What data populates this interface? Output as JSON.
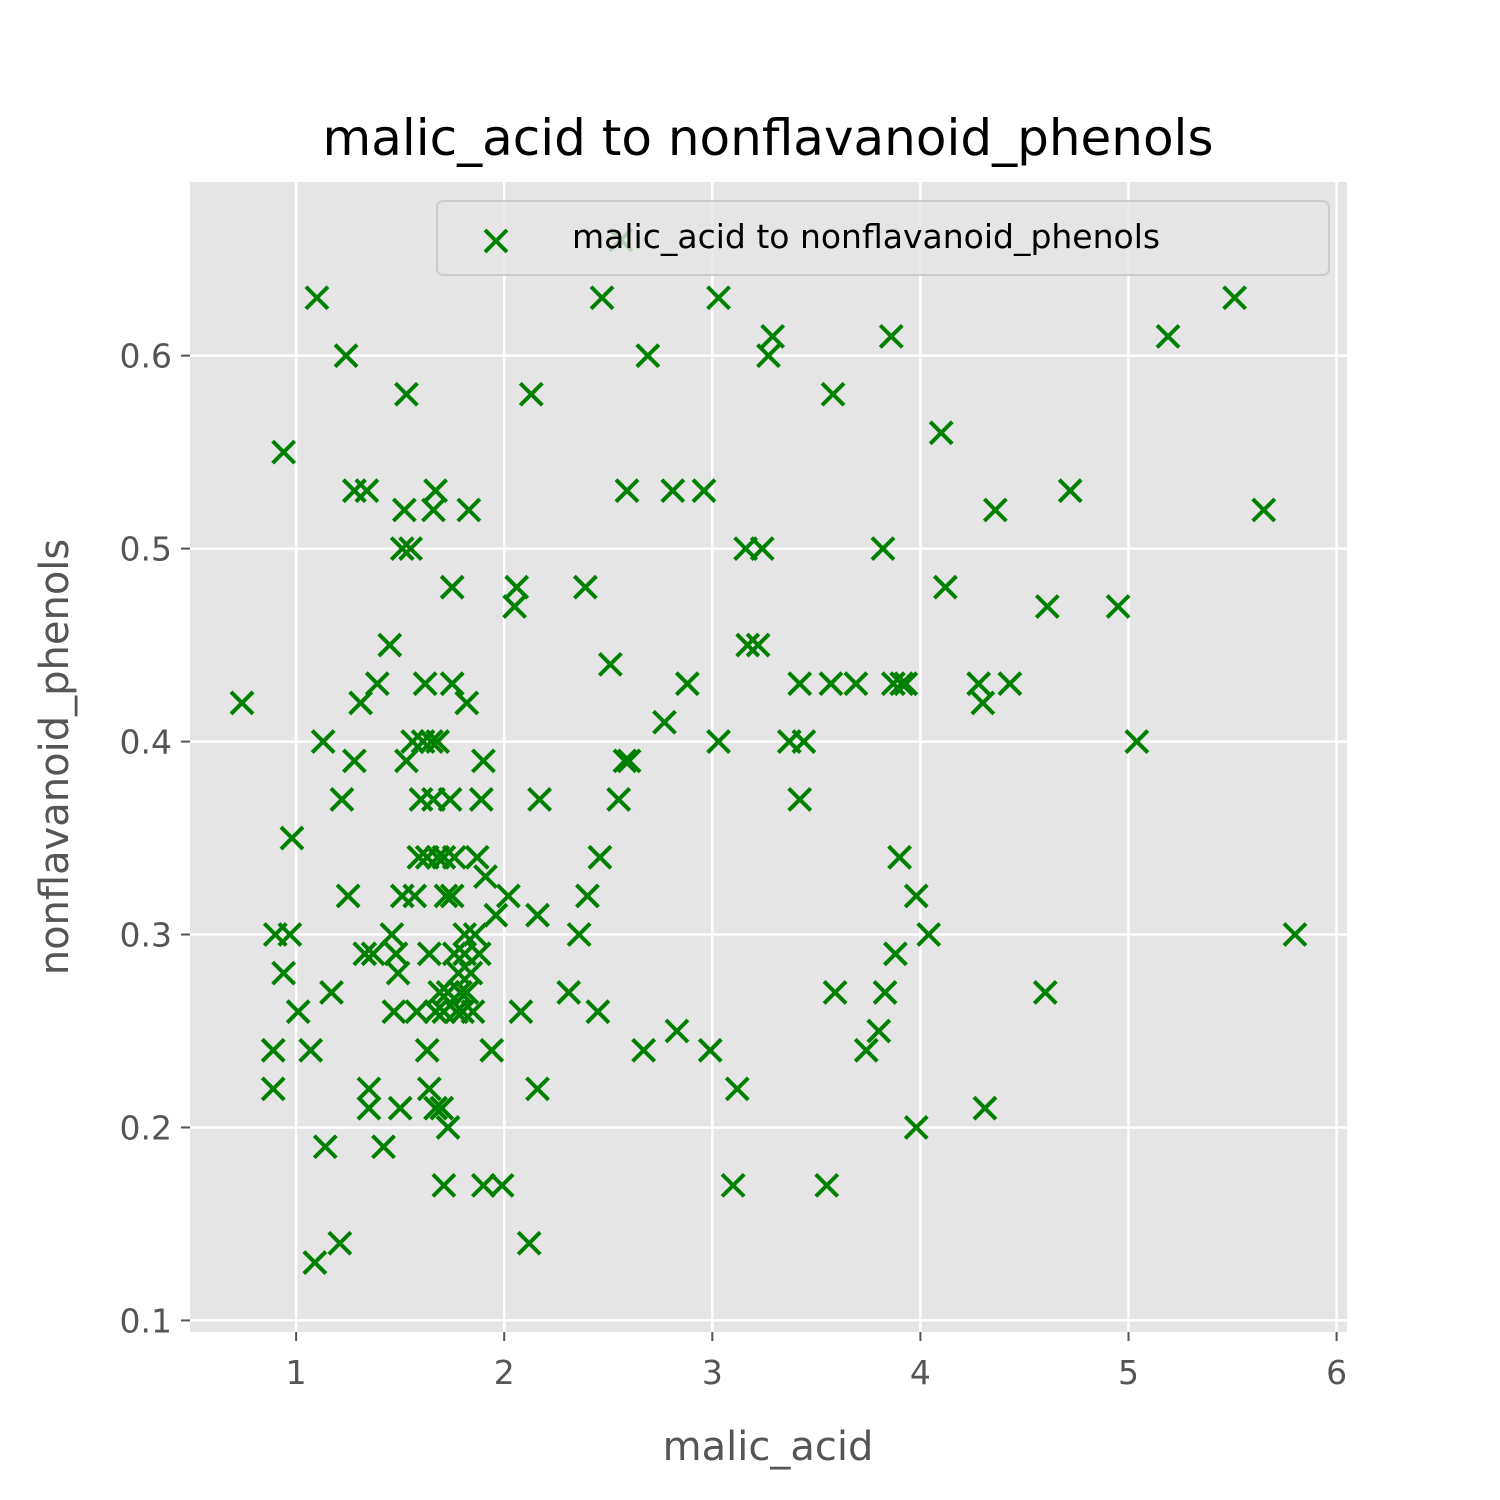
{
  "chart_data": {
    "type": "scatter",
    "title": "malic_acid to nonflavanoid_phenols",
    "xlabel": "malic_acid",
    "ylabel": "nonflavanoid_phenols",
    "xlim": [
      0.49,
      6.05
    ],
    "ylim": [
      0.094,
      0.69
    ],
    "xticks": [
      1,
      2,
      3,
      4,
      5,
      6
    ],
    "yticks": [
      0.1,
      0.2,
      0.3,
      0.4,
      0.5,
      0.6
    ],
    "xtick_labels": [
      "1",
      "2",
      "3",
      "4",
      "5",
      "6"
    ],
    "ytick_labels": [
      "0.1",
      "0.2",
      "0.3",
      "0.4",
      "0.5",
      "0.6"
    ],
    "grid": true,
    "legend": {
      "position": "top-right",
      "label": "malic_acid to nonflavanoid_phenols"
    },
    "colors": {
      "marker": "#008000",
      "plot_bg": "#e5e5e5",
      "grid": "#ffffff",
      "tick_text": "#555555"
    },
    "marker": "x",
    "series": [
      {
        "name": "malic_acid to nonflavanoid_phenols",
        "points": [
          [
            0.74,
            0.42
          ],
          [
            0.89,
            0.22
          ],
          [
            0.89,
            0.24
          ],
          [
            0.9,
            0.3
          ],
          [
            0.94,
            0.28
          ],
          [
            0.94,
            0.55
          ],
          [
            0.97,
            0.3
          ],
          [
            0.98,
            0.35
          ],
          [
            1.01,
            0.26
          ],
          [
            1.07,
            0.24
          ],
          [
            1.09,
            0.13
          ],
          [
            1.1,
            0.63
          ],
          [
            1.13,
            0.4
          ],
          [
            1.14,
            0.19
          ],
          [
            1.17,
            0.27
          ],
          [
            1.21,
            0.14
          ],
          [
            1.22,
            0.37
          ],
          [
            1.24,
            0.6
          ],
          [
            1.25,
            0.32
          ],
          [
            1.28,
            0.39
          ],
          [
            1.28,
            0.53
          ],
          [
            1.31,
            0.42
          ],
          [
            1.33,
            0.29
          ],
          [
            1.34,
            0.53
          ],
          [
            1.35,
            0.22
          ],
          [
            1.35,
            0.21
          ],
          [
            1.37,
            0.29
          ],
          [
            1.39,
            0.43
          ],
          [
            1.42,
            0.19
          ],
          [
            1.45,
            0.45
          ],
          [
            1.46,
            0.3
          ],
          [
            1.47,
            0.26
          ],
          [
            1.48,
            0.29
          ],
          [
            1.49,
            0.28
          ],
          [
            1.5,
            0.21
          ],
          [
            1.51,
            0.32
          ],
          [
            1.51,
            0.5
          ],
          [
            1.52,
            0.52
          ],
          [
            1.53,
            0.39
          ],
          [
            1.53,
            0.58
          ],
          [
            1.55,
            0.5
          ],
          [
            1.56,
            0.4
          ],
          [
            1.57,
            0.32
          ],
          [
            1.58,
            0.26
          ],
          [
            1.59,
            0.34
          ],
          [
            1.6,
            0.37
          ],
          [
            1.61,
            0.4
          ],
          [
            1.62,
            0.43
          ],
          [
            1.63,
            0.24
          ],
          [
            1.63,
            0.34
          ],
          [
            1.64,
            0.29
          ],
          [
            1.64,
            0.22
          ],
          [
            1.65,
            0.4
          ],
          [
            1.66,
            0.52
          ],
          [
            1.66,
            0.37
          ],
          [
            1.67,
            0.53
          ],
          [
            1.67,
            0.21
          ],
          [
            1.67,
            0.26
          ],
          [
            1.68,
            0.34
          ],
          [
            1.68,
            0.4
          ],
          [
            1.69,
            0.27
          ],
          [
            1.7,
            0.21
          ],
          [
            1.71,
            0.26
          ],
          [
            1.71,
            0.17
          ],
          [
            1.71,
            0.34
          ],
          [
            1.72,
            0.32
          ],
          [
            1.73,
            0.2
          ],
          [
            1.73,
            0.27
          ],
          [
            1.74,
            0.37
          ],
          [
            1.75,
            0.43
          ],
          [
            1.75,
            0.32
          ],
          [
            1.75,
            0.48
          ],
          [
            1.76,
            0.29
          ],
          [
            1.76,
            0.34
          ],
          [
            1.77,
            0.26
          ],
          [
            1.78,
            0.28
          ],
          [
            1.79,
            0.27
          ],
          [
            1.8,
            0.26
          ],
          [
            1.81,
            0.3
          ],
          [
            1.81,
            0.29
          ],
          [
            1.82,
            0.42
          ],
          [
            1.82,
            0.27
          ],
          [
            1.83,
            0.52
          ],
          [
            1.84,
            0.28
          ],
          [
            1.85,
            0.26
          ],
          [
            1.86,
            0.3
          ],
          [
            1.87,
            0.34
          ],
          [
            1.88,
            0.29
          ],
          [
            1.89,
            0.37
          ],
          [
            1.9,
            0.39
          ],
          [
            1.9,
            0.17
          ],
          [
            1.91,
            0.33
          ],
          [
            1.94,
            0.24
          ],
          [
            1.96,
            0.31
          ],
          [
            1.99,
            0.17
          ],
          [
            2.02,
            0.32
          ],
          [
            2.05,
            0.47
          ],
          [
            2.06,
            0.48
          ],
          [
            2.08,
            0.26
          ],
          [
            2.12,
            0.14
          ],
          [
            2.13,
            0.58
          ],
          [
            2.16,
            0.31
          ],
          [
            2.16,
            0.22
          ],
          [
            2.17,
            0.37
          ],
          [
            2.31,
            0.27
          ],
          [
            2.36,
            0.3
          ],
          [
            2.39,
            0.48
          ],
          [
            2.4,
            0.32
          ],
          [
            2.45,
            0.26
          ],
          [
            2.46,
            0.34
          ],
          [
            2.47,
            0.63
          ],
          [
            2.51,
            0.44
          ],
          [
            2.55,
            0.37
          ],
          [
            2.56,
            0.66
          ],
          [
            2.58,
            0.39
          ],
          [
            2.59,
            0.53
          ],
          [
            2.6,
            0.39
          ],
          [
            2.67,
            0.24
          ],
          [
            2.69,
            0.6
          ],
          [
            2.77,
            0.41
          ],
          [
            2.81,
            0.53
          ],
          [
            2.83,
            0.25
          ],
          [
            2.88,
            0.43
          ],
          [
            2.96,
            0.53
          ],
          [
            2.99,
            0.24
          ],
          [
            3.03,
            0.63
          ],
          [
            3.03,
            0.4
          ],
          [
            3.1,
            0.17
          ],
          [
            3.12,
            0.22
          ],
          [
            3.16,
            0.5
          ],
          [
            3.17,
            0.45
          ],
          [
            3.22,
            0.45
          ],
          [
            3.24,
            0.5
          ],
          [
            3.27,
            0.6
          ],
          [
            3.29,
            0.61
          ],
          [
            3.37,
            0.4
          ],
          [
            3.42,
            0.43
          ],
          [
            3.42,
            0.37
          ],
          [
            3.44,
            0.4
          ],
          [
            3.55,
            0.17
          ],
          [
            3.57,
            0.43
          ],
          [
            3.58,
            0.58
          ],
          [
            3.59,
            0.27
          ],
          [
            3.69,
            0.43
          ],
          [
            3.74,
            0.24
          ],
          [
            3.8,
            0.25
          ],
          [
            3.82,
            0.5
          ],
          [
            3.83,
            0.27
          ],
          [
            3.86,
            0.61
          ],
          [
            3.87,
            0.43
          ],
          [
            3.88,
            0.29
          ],
          [
            3.9,
            0.34
          ],
          [
            3.91,
            0.43
          ],
          [
            3.93,
            0.43
          ],
          [
            3.98,
            0.32
          ],
          [
            3.98,
            0.2
          ],
          [
            4.04,
            0.3
          ],
          [
            4.1,
            0.56
          ],
          [
            4.12,
            0.48
          ],
          [
            4.28,
            0.43
          ],
          [
            4.3,
            0.42
          ],
          [
            4.31,
            0.21
          ],
          [
            4.36,
            0.52
          ],
          [
            4.43,
            0.43
          ],
          [
            4.6,
            0.27
          ],
          [
            4.61,
            0.47
          ],
          [
            4.72,
            0.53
          ],
          [
            4.95,
            0.47
          ],
          [
            5.04,
            0.4
          ],
          [
            5.19,
            0.61
          ],
          [
            5.51,
            0.63
          ],
          [
            5.65,
            0.52
          ],
          [
            5.8,
            0.3
          ]
        ]
      }
    ]
  }
}
